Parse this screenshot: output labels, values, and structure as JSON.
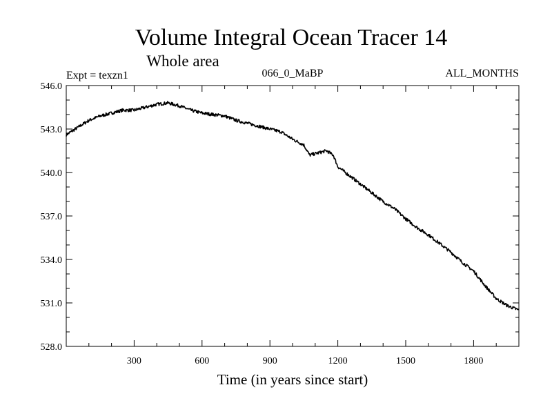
{
  "chart_data": {
    "type": "line",
    "title": "Volume Integral Ocean Tracer 14",
    "subtitle": "Whole area",
    "experiment": "Expt = texzn1",
    "period": "066_0_MaBP",
    "months": "ALL_MONTHS",
    "xlabel": "Time (in years since start)",
    "ylabel": "",
    "xlim": [
      0,
      2000
    ],
    "ylim": [
      528.0,
      546.0
    ],
    "x_ticks": [
      300,
      600,
      900,
      1200,
      1500,
      1800
    ],
    "x_tick_labels": [
      "300",
      "600",
      "900",
      "1200",
      "1500",
      "1800"
    ],
    "y_ticks": [
      528.0,
      531.0,
      534.0,
      537.0,
      540.0,
      543.0,
      546.0
    ],
    "y_tick_labels": [
      "528.0",
      "531.0",
      "534.0",
      "537.0",
      "540.0",
      "543.0",
      "546.0"
    ],
    "series": [
      {
        "name": "Volume Integral Ocean Tracer 14",
        "color": "#000000",
        "x": [
          0,
          50,
          100,
          150,
          200,
          250,
          300,
          350,
          400,
          450,
          500,
          550,
          600,
          650,
          700,
          750,
          800,
          850,
          900,
          950,
          1000,
          1050,
          1075,
          1100,
          1150,
          1180,
          1200,
          1250,
          1300,
          1350,
          1400,
          1450,
          1500,
          1550,
          1600,
          1650,
          1700,
          1750,
          1800,
          1850,
          1900,
          1950,
          2000
        ],
        "values": [
          542.6,
          543.1,
          543.6,
          543.9,
          544.1,
          544.3,
          544.3,
          544.5,
          544.7,
          544.8,
          544.6,
          544.3,
          544.1,
          544.0,
          543.9,
          543.6,
          543.4,
          543.2,
          543.0,
          542.8,
          542.3,
          541.9,
          541.2,
          541.3,
          541.5,
          541.2,
          540.4,
          539.8,
          539.2,
          538.6,
          538.0,
          537.5,
          536.8,
          536.2,
          535.7,
          535.1,
          534.5,
          533.8,
          533.2,
          532.2,
          531.3,
          530.8,
          530.5
        ]
      }
    ]
  }
}
